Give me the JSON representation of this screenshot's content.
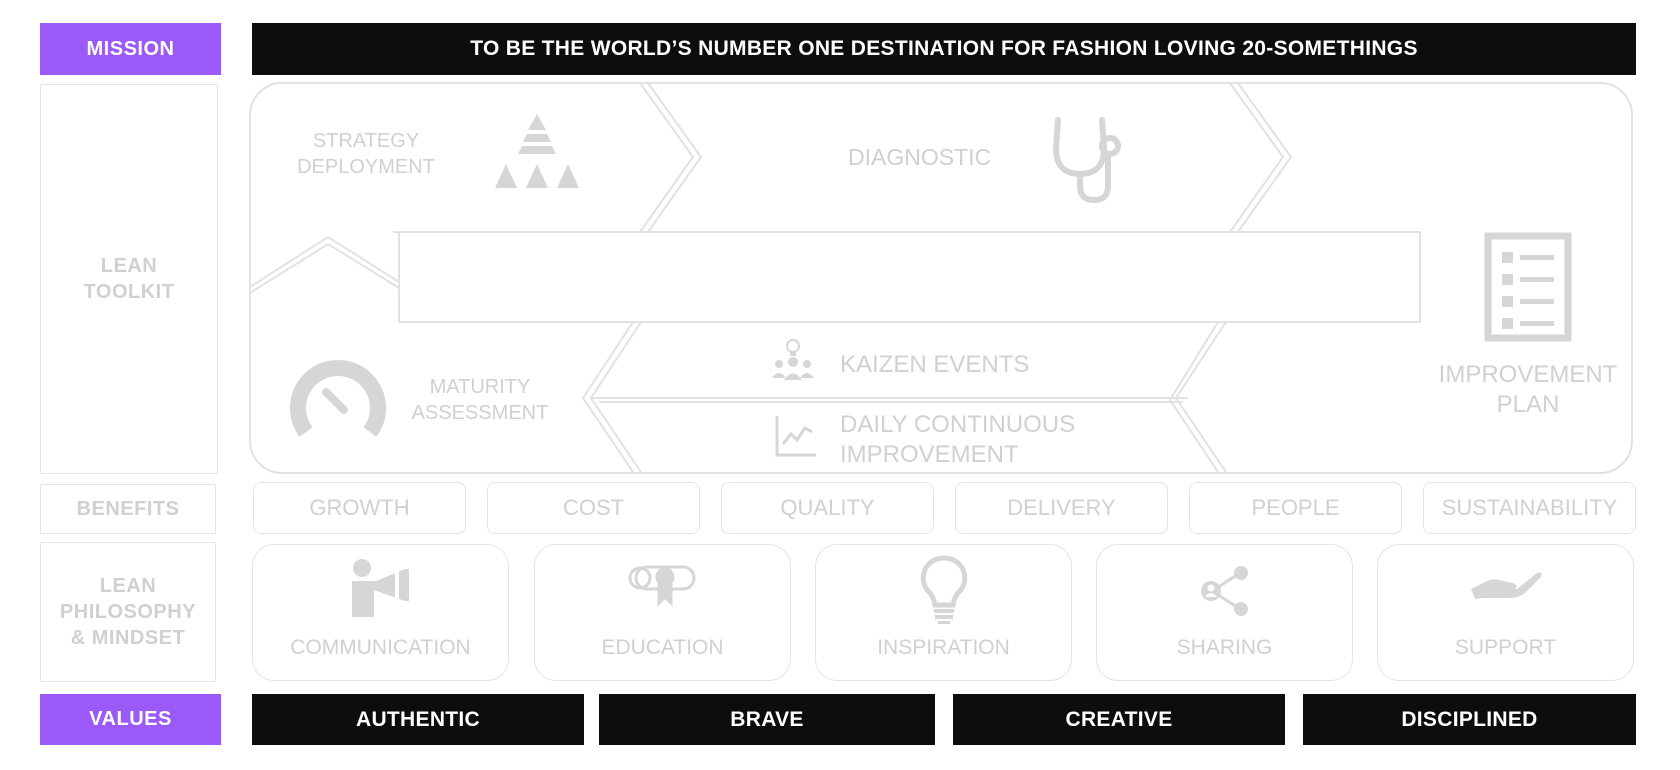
{
  "mission": {
    "label": "MISSION",
    "statement": "TO BE THE WORLD’S NUMBER ONE DESTINATION FOR FASHION LOVING 20-SOMETHINGS"
  },
  "rows": {
    "lean_toolkit": "LEAN\nTOOLKIT",
    "benefits": "BENEFITS",
    "philosophy": "LEAN\nPHILOSOPHY\n& MINDSET"
  },
  "toolkit": {
    "strategy": "STRATEGY\nDEPLOYMENT",
    "diagnostic": "DIAGNOSTIC",
    "maturity": "MATURITY\nASSESSMENT",
    "kaizen": "KAIZEN EVENTS",
    "daily": "DAILY CONTINUOUS\nIMPROVEMENT",
    "improvement_plan": "IMPROVEMENT\nPLAN"
  },
  "benefits": [
    "GROWTH",
    "COST",
    "QUALITY",
    "DELIVERY",
    "PEOPLE",
    "SUSTAINABILITY"
  ],
  "philosophy": [
    "COMMUNICATION",
    "EDUCATION",
    "INSPIRATION",
    "SHARING",
    "SUPPORT"
  ],
  "values": {
    "label": "VALUES",
    "items": [
      "AUTHENTIC",
      "BRAVE",
      "CREATIVE",
      "DISCIPLINED"
    ]
  },
  "colors": {
    "accent": "#9b59f7",
    "header": "#0d0d0d",
    "muted_text": "#d0d0d0",
    "muted_border": "#e4e4e4"
  },
  "icons": {
    "strategy": "pyramid-icon",
    "diagnostic": "stethoscope-icon",
    "maturity": "gauge-icon",
    "kaizen": "team-idea-icon",
    "daily": "trend-chart-icon",
    "improvement_plan": "checklist-icon",
    "communication": "megaphone-icon",
    "education": "diploma-icon",
    "inspiration": "lightbulb-icon",
    "sharing": "share-icon",
    "support": "hand-icon"
  }
}
